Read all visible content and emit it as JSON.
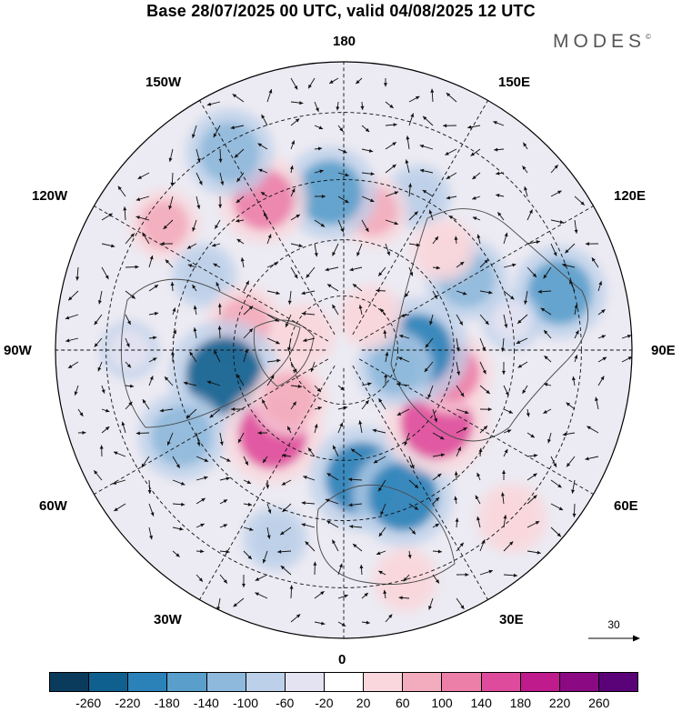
{
  "title": "Base 28/07/2025 00 UTC, valid 04/08/2025 12 UTC",
  "brand": "MODES",
  "brand_mark": "©",
  "longitude_labels": {
    "top": "180",
    "bottom": "0",
    "left": "90W",
    "right": "90E",
    "upper_left_a": "150W",
    "upper_left_b": "120W",
    "upper_right_a": "150E",
    "upper_right_b": "120E",
    "lower_left_a": "60W",
    "lower_left_b": "30W",
    "lower_right_a": "60E",
    "lower_right_b": "30E"
  },
  "reference_vector": {
    "value": "30"
  },
  "colorbar": {
    "colors": [
      "#0a3b5c",
      "#10608f",
      "#2b82b8",
      "#5a9ecb",
      "#8fb9dc",
      "#bcd0e9",
      "#e4e3f2",
      "#ffffff",
      "#f9d7dc",
      "#f3acbd",
      "#ec7fa8",
      "#df4b9c",
      "#bf1b8c",
      "#8b0a83",
      "#5a0378"
    ],
    "ticks": [
      "-260",
      "-220",
      "-180",
      "-140",
      "-100",
      "-60",
      "-20",
      "20",
      "60",
      "100",
      "140",
      "180",
      "220",
      "260"
    ]
  },
  "anomaly_centers": [
    {
      "lon": 105,
      "lat": 33,
      "value": -160,
      "color": "#5a9ecb"
    },
    {
      "lon": 120,
      "lat": 52,
      "value": -120,
      "color": "#8fb9dc"
    },
    {
      "lon": 154,
      "lat": 45,
      "value": -60,
      "color": "#bcd0e9"
    },
    {
      "lon": 168,
      "lat": 52,
      "value": 80,
      "color": "#f3acbd"
    },
    {
      "lon": 135,
      "lat": 52,
      "value": 60,
      "color": "#f9d7dc"
    },
    {
      "lon": -175,
      "lat": 48,
      "value": -160,
      "color": "#5a9ecb"
    },
    {
      "lon": -152,
      "lat": 45,
      "value": 140,
      "color": "#ec7fa8"
    },
    {
      "lon": -150,
      "lat": 32,
      "value": -140,
      "color": "#8fb9dc"
    },
    {
      "lon": -125,
      "lat": 34,
      "value": 80,
      "color": "#f3acbd"
    },
    {
      "lon": -118,
      "lat": 48,
      "value": -60,
      "color": "#bcd0e9"
    },
    {
      "lon": -105,
      "lat": 62,
      "value": 100,
      "color": "#f3acbd"
    },
    {
      "lon": -78,
      "lat": 57,
      "value": -220,
      "color": "#10608f"
    },
    {
      "lon": -62,
      "lat": 42,
      "value": -140,
      "color": "#8fb9dc"
    },
    {
      "lon": -40,
      "lat": 60,
      "value": 180,
      "color": "#df4b9c"
    },
    {
      "lon": -48,
      "lat": 70,
      "value": 100,
      "color": "#f3acbd"
    },
    {
      "lon": 8,
      "lat": 55,
      "value": -200,
      "color": "#2b82b8"
    },
    {
      "lon": 22,
      "lat": 48,
      "value": -180,
      "color": "#2b82b8"
    },
    {
      "lon": 52,
      "lat": 58,
      "value": 200,
      "color": "#df4b9c"
    },
    {
      "lon": 78,
      "lat": 60,
      "value": 120,
      "color": "#ec7fa8"
    },
    {
      "lon": 90,
      "lat": 70,
      "value": -200,
      "color": "#2b82b8"
    },
    {
      "lon": 70,
      "lat": 75,
      "value": -100,
      "color": "#8fb9dc"
    },
    {
      "lon": -110,
      "lat": 78,
      "value": 60,
      "color": "#f9d7dc"
    },
    {
      "lon": 140,
      "lat": 78,
      "value": 60,
      "color": "#f9d7dc"
    },
    {
      "lon": 45,
      "lat": 30,
      "value": 80,
      "color": "#f9d7dc"
    },
    {
      "lon": -20,
      "lat": 38,
      "value": -60,
      "color": "#bcd0e9"
    },
    {
      "lon": 15,
      "lat": 30,
      "value": 60,
      "color": "#f9d7dc"
    },
    {
      "lon": -90,
      "lat": 35,
      "value": -40,
      "color": "#e4e3f2"
    },
    {
      "lon": 100,
      "lat": 45,
      "value": -40,
      "color": "#e4e3f2"
    }
  ]
}
